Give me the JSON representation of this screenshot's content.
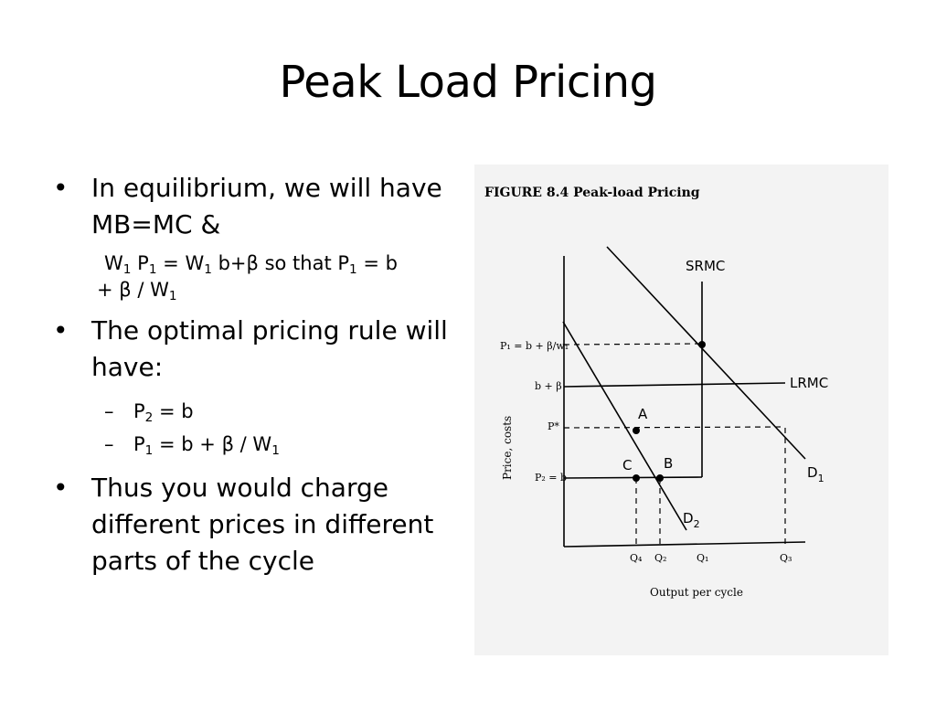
{
  "slide": {
    "title": "Peak Load Pricing"
  },
  "bullets": {
    "b1": {
      "text": "In equilibrium, we will have MB=MC &",
      "eq": {
        "w": "W",
        "w_sub": "1",
        "p": "P",
        "p_sub": "1",
        "mid": " = W",
        "mid_sub": "1",
        "rest": " b+β so that P",
        "rest_sub": "1",
        "tail": " = b",
        "cont": "+ β / W",
        "cont_sub": "1"
      }
    },
    "b2": {
      "text": "The optimal pricing rule will have:",
      "r1": {
        "p": "P",
        "sub": "2",
        "rest": " = b"
      },
      "r2": {
        "p": "P",
        "sub": "1",
        "rest": " = b + β / W",
        "rest_sub": "1"
      }
    },
    "b3": {
      "text": "Thus you would charge different prices in different parts of the cycle"
    }
  },
  "figure": {
    "caption": "FIGURE 8.4   Peak-load Pricing",
    "y_axis_label": "Price, costs",
    "x_axis_label": "Output per cycle",
    "y_ticks": [
      "P₁ = b + β/w₁",
      "b + β",
      "P*",
      "P₂ = b"
    ],
    "x_ticks": [
      "Q₄",
      "Q₂",
      "Q₁",
      "Q₃"
    ],
    "curve_labels": {
      "srmc": "SRMC",
      "lrmc": "LRMC",
      "d1": "D",
      "d1_sub": "1",
      "d2": "D",
      "d2_sub": "2"
    },
    "points": {
      "a": "A",
      "b": "B",
      "c": "C"
    }
  }
}
